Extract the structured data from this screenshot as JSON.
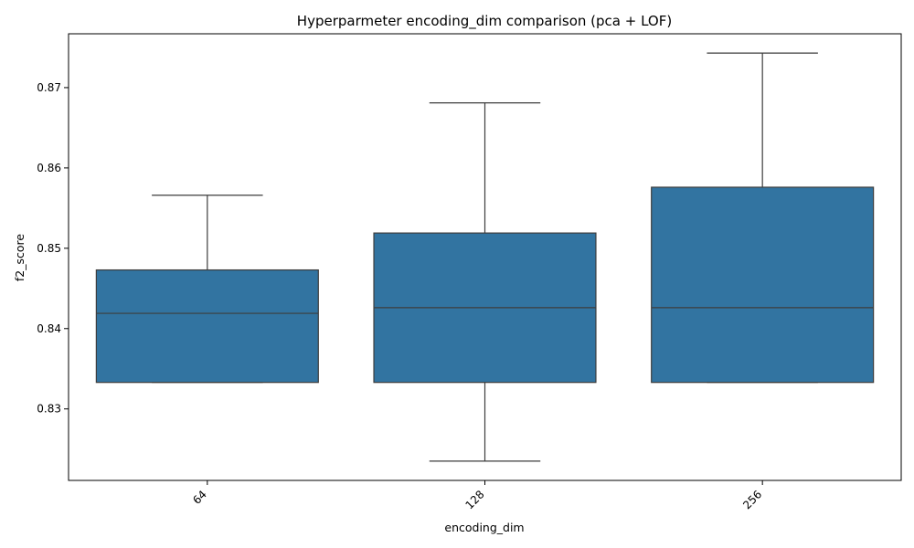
{
  "chart_data": {
    "type": "box",
    "title": "Hyperparmeter encoding_dim comparison (pca + LOF)",
    "xlabel": "encoding_dim",
    "ylabel": "f2_score",
    "categories": [
      "64",
      "128",
      "256"
    ],
    "boxes": [
      {
        "category": "64",
        "whisker_low": 0.8333,
        "q1": 0.8333,
        "median": 0.8419,
        "q3": 0.8473,
        "whisker_high": 0.8566
      },
      {
        "category": "128",
        "whisker_low": 0.8235,
        "q1": 0.8333,
        "median": 0.8426,
        "q3": 0.8519,
        "whisker_high": 0.8681
      },
      {
        "category": "256",
        "whisker_low": 0.8333,
        "q1": 0.8333,
        "median": 0.8426,
        "q3": 0.8576,
        "whisker_high": 0.8743
      }
    ],
    "ylim": [
      0.8211,
      0.8767
    ],
    "yticks": [
      0.83,
      0.84,
      0.85,
      0.86,
      0.87
    ],
    "ytick_labels": [
      "0.83",
      "0.84",
      "0.85",
      "0.86",
      "0.87"
    ],
    "xtick_rotation": 45,
    "grid": false,
    "legend": "none",
    "colors": {
      "box_fill": "#3274a1",
      "line": "#3d3d3d",
      "axis": "#000000"
    }
  }
}
